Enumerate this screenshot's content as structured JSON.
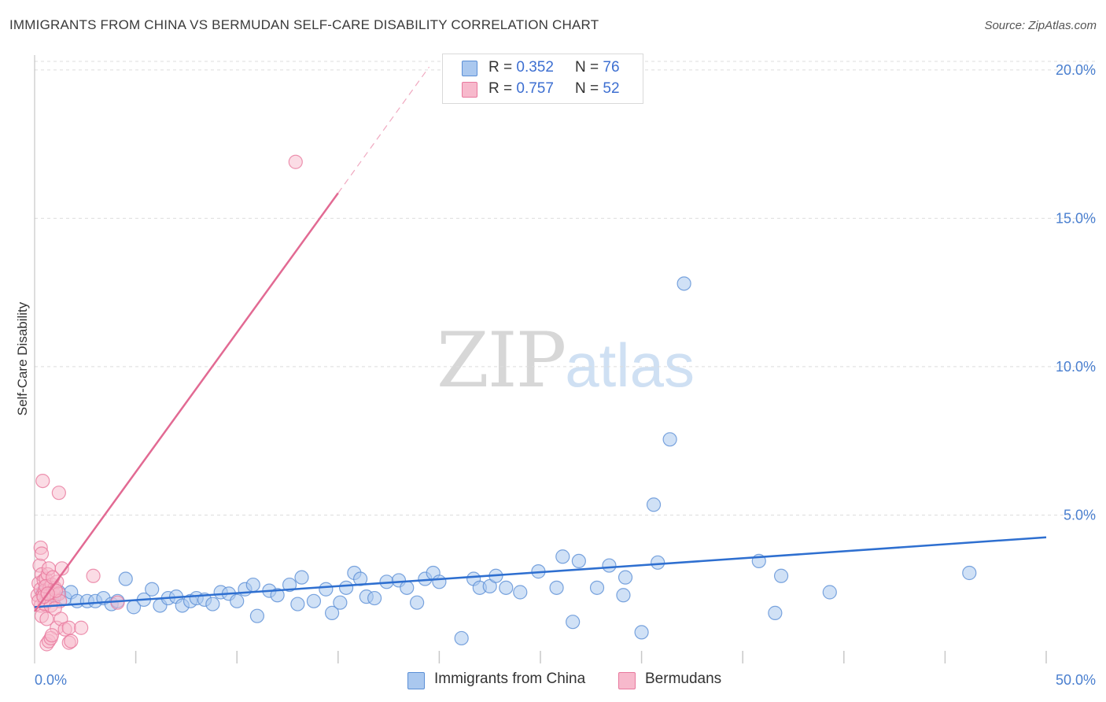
{
  "title": "IMMIGRANTS FROM CHINA VS BERMUDAN SELF-CARE DISABILITY CORRELATION CHART",
  "source": "Source: ZipAtlas.com",
  "watermark": {
    "zip": "ZIP",
    "atlas": "atlas"
  },
  "colors": {
    "blue_fill": "#aac8ef",
    "blue_stroke": "#5b8fd6",
    "blue_line": "#2e6fd0",
    "pink_fill": "#f7b9cc",
    "pink_stroke": "#e8799e",
    "pink_line": "#e26a93",
    "grid": "#dddddd",
    "axis_text": "#4a7fcf"
  },
  "legend": {
    "series1": {
      "r_label": "R = ",
      "r_value": "0.352",
      "n_label": "N = ",
      "n_value": "76"
    },
    "series2": {
      "r_label": "R = ",
      "r_value": "0.757",
      "n_label": "N = ",
      "n_value": "52"
    }
  },
  "bottom_legend": {
    "series1": "Immigrants from China",
    "series2": "Bermudans"
  },
  "chart_data": {
    "type": "scatter",
    "title": "IMMIGRANTS FROM CHINA VS BERMUDAN SELF-CARE DISABILITY CORRELATION CHART",
    "xlabel": "",
    "ylabel": "Self-Care Disability",
    "xlim": [
      0,
      50
    ],
    "ylim": [
      0,
      20.5
    ],
    "x_tick_labels": [
      "0.0%",
      "50.0%"
    ],
    "y_ticks": [
      5,
      10,
      15,
      20
    ],
    "y_tick_labels": [
      "5.0%",
      "10.0%",
      "15.0%",
      "20.0%"
    ],
    "x_minor_ticks": [
      5,
      10,
      15,
      20,
      25,
      30,
      35,
      40,
      45,
      50
    ],
    "series": [
      {
        "name": "Immigrants from China",
        "trend": {
          "x": [
            0,
            50
          ],
          "y": [
            1.9,
            4.25
          ]
        },
        "points": [
          [
            0.4,
            2.4
          ],
          [
            0.6,
            2.6
          ],
          [
            0.8,
            2.3
          ],
          [
            1.0,
            2.3
          ],
          [
            1.2,
            2.4
          ],
          [
            1.5,
            2.2
          ],
          [
            1.8,
            2.4
          ],
          [
            2.1,
            2.1
          ],
          [
            2.6,
            2.1
          ],
          [
            3.0,
            2.1
          ],
          [
            3.4,
            2.2
          ],
          [
            3.8,
            2.0
          ],
          [
            4.1,
            2.1
          ],
          [
            4.5,
            2.85
          ],
          [
            4.9,
            1.9
          ],
          [
            5.4,
            2.15
          ],
          [
            5.8,
            2.5
          ],
          [
            6.2,
            1.95
          ],
          [
            6.6,
            2.2
          ],
          [
            7.0,
            2.25
          ],
          [
            7.3,
            1.95
          ],
          [
            7.7,
            2.1
          ],
          [
            8.0,
            2.2
          ],
          [
            8.4,
            2.15
          ],
          [
            8.8,
            2.0
          ],
          [
            9.2,
            2.4
          ],
          [
            9.6,
            2.35
          ],
          [
            10.0,
            2.1
          ],
          [
            10.4,
            2.5
          ],
          [
            10.8,
            2.65
          ],
          [
            11.0,
            1.6
          ],
          [
            11.6,
            2.45
          ],
          [
            12.0,
            2.3
          ],
          [
            12.6,
            2.65
          ],
          [
            13.0,
            2.0
          ],
          [
            13.2,
            2.9
          ],
          [
            13.8,
            2.1
          ],
          [
            14.4,
            2.5
          ],
          [
            14.7,
            1.7
          ],
          [
            15.1,
            2.05
          ],
          [
            15.4,
            2.55
          ],
          [
            15.8,
            3.05
          ],
          [
            16.1,
            2.85
          ],
          [
            16.4,
            2.25
          ],
          [
            16.8,
            2.2
          ],
          [
            17.4,
            2.75
          ],
          [
            18.0,
            2.8
          ],
          [
            18.4,
            2.55
          ],
          [
            18.9,
            2.05
          ],
          [
            19.3,
            2.85
          ],
          [
            19.7,
            3.05
          ],
          [
            20.0,
            2.75
          ],
          [
            21.1,
            0.85
          ],
          [
            21.7,
            2.85
          ],
          [
            22.0,
            2.55
          ],
          [
            22.5,
            2.6
          ],
          [
            22.8,
            2.95
          ],
          [
            23.3,
            2.55
          ],
          [
            24.0,
            2.4
          ],
          [
            24.9,
            3.1
          ],
          [
            25.8,
            2.55
          ],
          [
            26.1,
            3.6
          ],
          [
            26.6,
            1.4
          ],
          [
            26.9,
            3.45
          ],
          [
            27.8,
            2.55
          ],
          [
            28.4,
            3.3
          ],
          [
            29.1,
            2.3
          ],
          [
            29.2,
            2.9
          ],
          [
            30.0,
            1.05
          ],
          [
            30.6,
            5.35
          ],
          [
            30.8,
            3.4
          ],
          [
            31.4,
            7.55
          ],
          [
            32.1,
            12.8
          ],
          [
            35.8,
            3.45
          ],
          [
            36.6,
            1.7
          ],
          [
            36.9,
            2.95
          ],
          [
            39.3,
            2.4
          ],
          [
            46.2,
            3.05
          ]
        ]
      },
      {
        "name": "Bermudans",
        "trend": {
          "x": [
            0,
            15.0
          ],
          "y": [
            1.75,
            15.85
          ]
        },
        "trend_dashed": {
          "x": [
            15.0,
            19.5
          ],
          "y": [
            15.85,
            20.1
          ]
        },
        "points": [
          [
            0.15,
            2.3
          ],
          [
            0.2,
            2.7
          ],
          [
            0.25,
            3.3
          ],
          [
            0.3,
            2.5
          ],
          [
            0.35,
            3.0
          ],
          [
            0.4,
            2.3
          ],
          [
            0.45,
            2.8
          ],
          [
            0.3,
            3.9
          ],
          [
            0.35,
            3.7
          ],
          [
            0.4,
            6.15
          ],
          [
            0.5,
            2.45
          ],
          [
            0.55,
            2.85
          ],
          [
            0.6,
            2.3
          ],
          [
            0.65,
            3.0
          ],
          [
            0.7,
            3.2
          ],
          [
            0.75,
            2.55
          ],
          [
            0.8,
            2.35
          ],
          [
            0.85,
            2.65
          ],
          [
            0.9,
            2.4
          ],
          [
            0.95,
            2.2
          ],
          [
            1.0,
            2.55
          ],
          [
            1.1,
            2.75
          ],
          [
            1.2,
            2.35
          ],
          [
            1.25,
            2.1
          ],
          [
            0.3,
            1.95
          ],
          [
            0.35,
            1.6
          ],
          [
            0.5,
            2.0
          ],
          [
            0.6,
            1.5
          ],
          [
            0.8,
            1.95
          ],
          [
            1.0,
            1.85
          ],
          [
            1.1,
            1.2
          ],
          [
            1.3,
            1.5
          ],
          [
            1.5,
            1.15
          ],
          [
            1.7,
            1.2
          ],
          [
            2.3,
            1.2
          ],
          [
            0.6,
            0.65
          ],
          [
            0.7,
            0.75
          ],
          [
            0.8,
            0.85
          ],
          [
            0.85,
            0.95
          ],
          [
            1.7,
            0.7
          ],
          [
            1.8,
            0.75
          ],
          [
            1.2,
            5.75
          ],
          [
            2.9,
            2.95
          ],
          [
            4.1,
            2.05
          ],
          [
            12.9,
            16.9
          ],
          [
            0.2,
            2.1
          ],
          [
            0.45,
            2.25
          ],
          [
            0.55,
            2.6
          ],
          [
            0.9,
            2.9
          ],
          [
            1.35,
            3.2
          ],
          [
            1.05,
            2.45
          ],
          [
            0.65,
            2.35
          ]
        ]
      }
    ]
  }
}
